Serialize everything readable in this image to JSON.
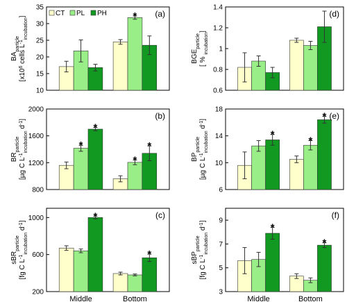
{
  "chart_data": [
    {
      "type": "bar",
      "panel_label": "(a)",
      "categories": [
        "Middle",
        "Bottom"
      ],
      "ylabel_lines": [
        [
          {
            "t": "BA"
          },
          {
            "t": "particle",
            "sub": true
          }
        ],
        [
          {
            "t": "[x10"
          },
          {
            "t": "6",
            "sup": true
          },
          {
            "t": " cells L"
          },
          {
            "t": "-1",
            "sup": true
          },
          {
            "t": "incubation",
            "sub": true
          },
          {
            "t": "]"
          }
        ]
      ],
      "ylim": [
        10,
        35
      ],
      "yticks": [
        "10",
        "15",
        "20",
        "25",
        "30",
        "35"
      ],
      "series": [
        {
          "name": "CT",
          "values": [
            17.1,
            24.5
          ],
          "errors": [
            1.6,
            0.7
          ],
          "star": [
            false,
            false
          ]
        },
        {
          "name": "PL",
          "values": [
            21.8,
            31.8
          ],
          "errors": [
            3.3,
            0.5
          ],
          "star": [
            false,
            true
          ]
        },
        {
          "name": "PH",
          "values": [
            16.8,
            23.5
          ],
          "errors": [
            1.0,
            2.8
          ],
          "star": [
            false,
            false
          ]
        }
      ],
      "legend": [
        "CT",
        "PL",
        "PH"
      ]
    },
    {
      "type": "bar",
      "panel_label": "(b)",
      "categories": [
        "Middle",
        "Bottom"
      ],
      "ylabel_lines": [
        [
          {
            "t": "BR"
          },
          {
            "t": "particle",
            "sub": true
          }
        ],
        [
          {
            "t": "[µg C L"
          },
          {
            "t": "-1",
            "sup": true
          },
          {
            "t": "incubation",
            "sub": true
          },
          {
            "t": " d"
          },
          {
            "t": "-1",
            "sup": true
          },
          {
            "t": "]"
          }
        ]
      ],
      "ylim": [
        800,
        2000
      ],
      "yticks": [
        "800",
        "1200",
        "1600",
        "2000"
      ],
      "series": [
        {
          "name": "CT",
          "values": [
            1160,
            960
          ],
          "errors": [
            50,
            45
          ],
          "star": [
            false,
            false
          ]
        },
        {
          "name": "PL",
          "values": [
            1415,
            1205
          ],
          "errors": [
            45,
            35
          ],
          "star": [
            true,
            true
          ]
        },
        {
          "name": "PH",
          "values": [
            1700,
            1340
          ],
          "errors": [
            25,
            110
          ],
          "star": [
            true,
            true
          ]
        }
      ]
    },
    {
      "type": "bar",
      "panel_label": "(c)",
      "categories": [
        "Middle",
        "Bottom"
      ],
      "ylabel_lines": [
        [
          {
            "t": "sBR"
          },
          {
            "t": "particle",
            "sub": true
          }
        ],
        [
          {
            "t": "[fg C L"
          },
          {
            "t": "-1",
            "sup": true
          },
          {
            "t": "incubation",
            "sub": true
          },
          {
            "t": " d"
          },
          {
            "t": "-1",
            "sup": true
          },
          {
            "t": "]"
          }
        ]
      ],
      "ylim": [
        200,
        1100
      ],
      "yticks": [
        "200",
        "600",
        "1000"
      ],
      "series": [
        {
          "name": "CT",
          "values": [
            670,
            395
          ],
          "errors": [
            25,
            15
          ],
          "star": [
            false,
            false
          ]
        },
        {
          "name": "PL",
          "values": [
            640,
            380
          ],
          "errors": [
            20,
            10
          ],
          "star": [
            false,
            false
          ]
        },
        {
          "name": "PH",
          "values": [
            1000,
            565
          ],
          "errors": [
            15,
            40
          ],
          "star": [
            true,
            true
          ]
        }
      ]
    },
    {
      "type": "bar",
      "panel_label": "(d)",
      "categories": [
        "Middle",
        "Bottom"
      ],
      "ylabel_lines": [
        [
          {
            "t": "BGE"
          },
          {
            "t": "particle",
            "sub": true
          }
        ],
        [
          {
            "t": "[ % "
          },
          {
            "t": "incubation",
            "sub": true
          },
          {
            "t": "]"
          }
        ]
      ],
      "ylim": [
        0.6,
        1.4
      ],
      "yticks": [
        "0.6",
        "0.8",
        "1",
        "1.2",
        "1.4"
      ],
      "series": [
        {
          "name": "CT",
          "values": [
            0.82,
            1.08
          ],
          "errors": [
            0.14,
            0.02
          ],
          "star": [
            false,
            false
          ]
        },
        {
          "name": "PL",
          "values": [
            0.88,
            1.03
          ],
          "errors": [
            0.05,
            0.04
          ],
          "star": [
            false,
            false
          ]
        },
        {
          "name": "PH",
          "values": [
            0.77,
            1.21
          ],
          "errors": [
            0.05,
            0.15
          ],
          "star": [
            false,
            false
          ]
        }
      ]
    },
    {
      "type": "bar",
      "panel_label": "(e)",
      "categories": [
        "Middle",
        "Bottom"
      ],
      "ylabel_lines": [
        [
          {
            "t": "BP"
          },
          {
            "t": "particle",
            "sub": true
          }
        ],
        [
          {
            "t": "[µg C L"
          },
          {
            "t": "-1",
            "sup": true
          },
          {
            "t": "incubation",
            "sub": true
          },
          {
            "t": " d"
          },
          {
            "t": "-1",
            "sup": true
          },
          {
            "t": "]"
          }
        ]
      ],
      "ylim": [
        6,
        18
      ],
      "yticks": [
        "6",
        "10",
        "14",
        "18"
      ],
      "series": [
        {
          "name": "CT",
          "values": [
            9.6,
            10.5
          ],
          "errors": [
            2.0,
            0.5
          ],
          "star": [
            false,
            false
          ]
        },
        {
          "name": "PL",
          "values": [
            12.5,
            12.6
          ],
          "errors": [
            0.8,
            0.7
          ],
          "star": [
            false,
            true
          ]
        },
        {
          "name": "PH",
          "values": [
            13.4,
            16.4
          ],
          "errors": [
            0.8,
            0.5
          ],
          "star": [
            true,
            true
          ]
        }
      ]
    },
    {
      "type": "bar",
      "panel_label": "(f)",
      "categories": [
        "Middle",
        "Bottom"
      ],
      "ylabel_lines": [
        [
          {
            "t": "sBP"
          },
          {
            "t": "particle",
            "sub": true
          }
        ],
        [
          {
            "t": "[fg C L"
          },
          {
            "t": "-1",
            "sup": true
          },
          {
            "t": "incubation",
            "sub": true
          },
          {
            "t": " d"
          },
          {
            "t": "-1",
            "sup": true
          },
          {
            "t": "]"
          }
        ]
      ],
      "ylim": [
        3,
        10
      ],
      "yticks": [
        "3",
        "5",
        "7",
        "9"
      ],
      "series": [
        {
          "name": "CT",
          "values": [
            5.6,
            4.3
          ],
          "errors": [
            1.1,
            0.2
          ],
          "star": [
            false,
            false
          ]
        },
        {
          "name": "PL",
          "values": [
            5.7,
            3.95
          ],
          "errors": [
            0.6,
            0.2
          ],
          "star": [
            false,
            false
          ]
        },
        {
          "name": "PH",
          "values": [
            7.9,
            6.9
          ],
          "errors": [
            0.5,
            0.2
          ],
          "star": [
            true,
            true
          ]
        }
      ]
    }
  ],
  "colors": {
    "CT": "#ffffcc",
    "PL": "#99ee88",
    "PH": "#119922",
    "edge": "#333333"
  }
}
